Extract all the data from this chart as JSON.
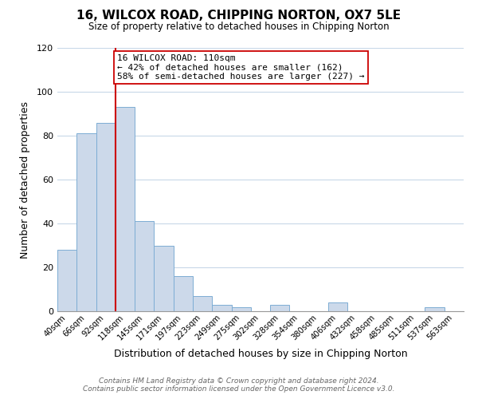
{
  "title": "16, WILCOX ROAD, CHIPPING NORTON, OX7 5LE",
  "subtitle": "Size of property relative to detached houses in Chipping Norton",
  "xlabel": "Distribution of detached houses by size in Chipping Norton",
  "ylabel": "Number of detached properties",
  "bar_color": "#ccd9ea",
  "bar_edge_color": "#7dadd4",
  "bin_labels": [
    "40sqm",
    "66sqm",
    "92sqm",
    "118sqm",
    "145sqm",
    "171sqm",
    "197sqm",
    "223sqm",
    "249sqm",
    "275sqm",
    "302sqm",
    "328sqm",
    "354sqm",
    "380sqm",
    "406sqm",
    "432sqm",
    "458sqm",
    "485sqm",
    "511sqm",
    "537sqm",
    "563sqm"
  ],
  "bar_heights": [
    28,
    81,
    86,
    93,
    41,
    30,
    16,
    7,
    3,
    2,
    0,
    3,
    0,
    0,
    4,
    0,
    0,
    0,
    0,
    2,
    0
  ],
  "ylim": [
    0,
    120
  ],
  "yticks": [
    0,
    20,
    40,
    60,
    80,
    100,
    120
  ],
  "vline_color": "#cc0000",
  "annotation_text": "16 WILCOX ROAD: 110sqm\n← 42% of detached houses are smaller (162)\n58% of semi-detached houses are larger (227) →",
  "annotation_box_color": "#ffffff",
  "annotation_box_edge": "#cc0000",
  "footer_line1": "Contains HM Land Registry data © Crown copyright and database right 2024.",
  "footer_line2": "Contains public sector information licensed under the Open Government Licence v3.0.",
  "background_color": "#ffffff",
  "grid_color": "#c8d8e8"
}
